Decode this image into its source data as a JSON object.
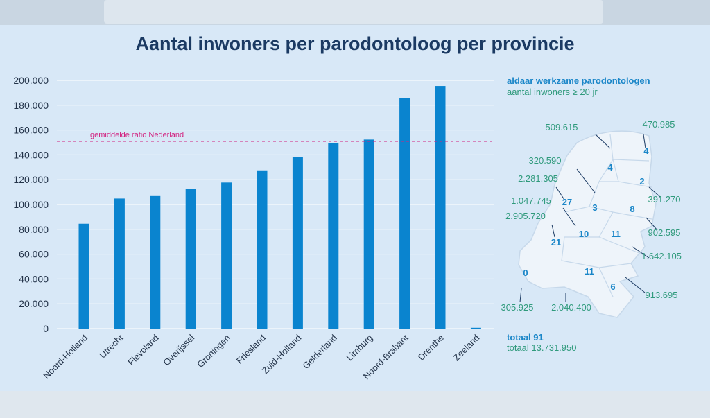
{
  "chart_data": {
    "type": "bar",
    "title": "Aantal inwoners per parodontoloog per provincie",
    "categories": [
      "Noord-Holland",
      "Utrecht",
      "Flevoland",
      "Overijssel",
      "Groningen",
      "Friesland",
      "Zuid-Holland",
      "Gelderland",
      "Limburg",
      "Noord-Brabant",
      "Drenthe",
      "Zeeland"
    ],
    "values": [
      84500,
      104800,
      106800,
      112800,
      117700,
      127500,
      138300,
      149300,
      152300,
      185500,
      195500,
      0
    ],
    "ylim": [
      0,
      200000
    ],
    "yticks": [
      "0",
      "20.000",
      "40.000",
      "60.000",
      "80.000",
      "100.000",
      "120.000",
      "140.000",
      "160.000",
      "180.000",
      "200.000"
    ],
    "reference_line": {
      "label": "gemiddelde ratio Nederland",
      "value": 150900
    },
    "bar_color": "#0a84cf",
    "reference_color": "#d2227f"
  },
  "legend": {
    "heading": "aldaar werkzame parodontologen",
    "subheading": "aantal inwoners ≥ 20 jr"
  },
  "map": {
    "provinces": [
      {
        "name": "Groningen",
        "count": "4",
        "inhabitants": "470.985"
      },
      {
        "name": "Friesland",
        "count": "4",
        "inhabitants": "509.615"
      },
      {
        "name": "Drenthe",
        "count": "2",
        "inhabitants": "391.270"
      },
      {
        "name": "Flevoland",
        "count": "3",
        "inhabitants": "320.590"
      },
      {
        "name": "Noord-Holland",
        "count": "27",
        "inhabitants": "2.281.305"
      },
      {
        "name": "Overijssel",
        "count": "8",
        "inhabitants": "902.595"
      },
      {
        "name": "Utrecht",
        "count": "10",
        "inhabitants": "1.047.745"
      },
      {
        "name": "Zuid-Holland",
        "count": "21",
        "inhabitants": "2.905.720"
      },
      {
        "name": "Gelderland",
        "count": "11",
        "inhabitants": "1.642.105"
      },
      {
        "name": "Zeeland",
        "count": "0",
        "inhabitants": "305.925"
      },
      {
        "name": "Noord-Brabant",
        "count": "11",
        "inhabitants": "2.040.400"
      },
      {
        "name": "Limburg",
        "count": "6",
        "inhabitants": "913.695"
      }
    ]
  },
  "totals": {
    "count_label": "totaal 91",
    "inhabitants_label": "totaal 13.731.950"
  },
  "colors": {
    "count": "#1a86c8",
    "inhabitants": "#2f9a7c",
    "title": "#1b3a63"
  }
}
